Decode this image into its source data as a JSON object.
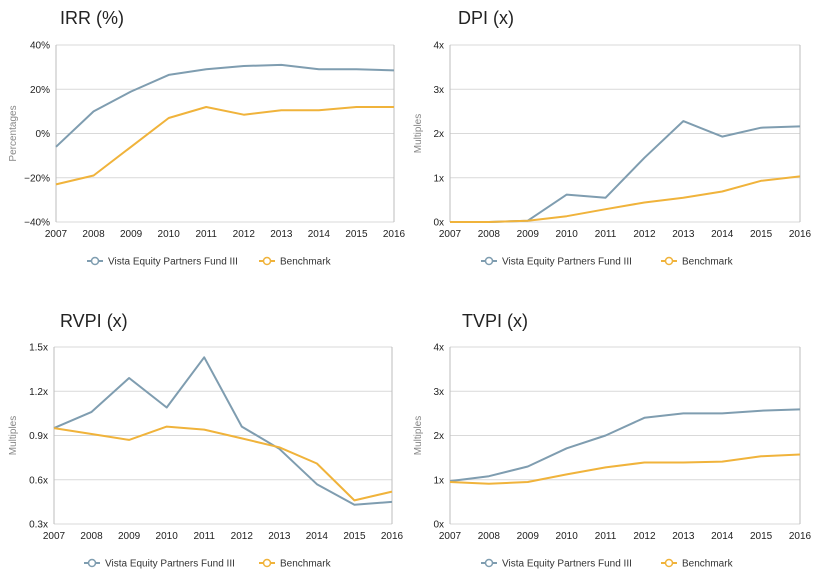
{
  "colors": {
    "fund": "#7f9db0",
    "benchmark": "#f0b33b"
  },
  "legend": {
    "fund": "Vista Equity Partners Fund III",
    "benchmark": "Benchmark"
  },
  "chart_data": [
    {
      "type": "line",
      "title": "IRR (%)",
      "ylabel": "Percentages",
      "x": [
        "2007",
        "2008",
        "2009",
        "2010",
        "2011",
        "2012",
        "2013",
        "2014",
        "2015",
        "2016"
      ],
      "yticks": [
        -40,
        -20,
        0,
        20,
        40
      ],
      "ytick_labels": [
        "−40%",
        "−20%",
        "0%",
        "20%",
        "40%"
      ],
      "ylim": [
        -40,
        40
      ],
      "legend": "bottom",
      "grid": true,
      "series": [
        {
          "name": "Vista Equity Partners Fund III",
          "values": [
            -6,
            10,
            19,
            26.5,
            29,
            30.5,
            31,
            29,
            29,
            28.5
          ]
        },
        {
          "name": "Benchmark",
          "values": [
            -23,
            -19,
            -6,
            7,
            12,
            8.5,
            10.5,
            10.5,
            12,
            12
          ]
        }
      ]
    },
    {
      "type": "line",
      "title": "DPI (x)",
      "ylabel": "Multiples",
      "x": [
        "2007",
        "2008",
        "2009",
        "2010",
        "2011",
        "2012",
        "2013",
        "2014",
        "2015",
        "2016"
      ],
      "yticks": [
        0,
        1,
        2,
        3,
        4
      ],
      "ytick_labels": [
        "0x",
        "1x",
        "2x",
        "3x",
        "4x"
      ],
      "ylim": [
        0,
        4
      ],
      "legend": "bottom",
      "grid": true,
      "series": [
        {
          "name": "Vista Equity Partners Fund III",
          "values": [
            0,
            0,
            0.03,
            0.62,
            0.55,
            1.45,
            2.28,
            1.93,
            2.13,
            2.16
          ]
        },
        {
          "name": "Benchmark",
          "values": [
            0,
            0,
            0.03,
            0.13,
            0.29,
            0.44,
            0.55,
            0.69,
            0.93,
            1.03
          ]
        }
      ]
    },
    {
      "type": "line",
      "title": "RVPI (x)",
      "ylabel": "Multiples",
      "x": [
        "2007",
        "2008",
        "2009",
        "2010",
        "2011",
        "2012",
        "2013",
        "2014",
        "2015",
        "2016"
      ],
      "yticks": [
        0.3,
        0.6,
        0.9,
        1.2,
        1.5
      ],
      "ytick_labels": [
        "0.3x",
        "0.6x",
        "0.9x",
        "1.2x",
        "1.5x"
      ],
      "ylim": [
        0.3,
        1.5
      ],
      "legend": "bottom",
      "grid": true,
      "series": [
        {
          "name": "Vista Equity Partners Fund III",
          "values": [
            0.95,
            1.06,
            1.29,
            1.09,
            1.43,
            0.96,
            0.81,
            0.57,
            0.43,
            0.45
          ]
        },
        {
          "name": "Benchmark",
          "values": [
            0.95,
            0.91,
            0.87,
            0.96,
            0.94,
            0.88,
            0.82,
            0.71,
            0.46,
            0.52
          ]
        }
      ]
    },
    {
      "type": "line",
      "title": "TVPI (x)",
      "ylabel": "Multiples",
      "x": [
        "2007",
        "2008",
        "2009",
        "2010",
        "2011",
        "2012",
        "2013",
        "2014",
        "2015",
        "2016"
      ],
      "yticks": [
        0,
        1,
        2,
        3,
        4
      ],
      "ytick_labels": [
        "0x",
        "1x",
        "2x",
        "3x",
        "4x"
      ],
      "ylim": [
        0,
        4
      ],
      "legend": "bottom",
      "grid": true,
      "series": [
        {
          "name": "Vista Equity Partners Fund III",
          "values": [
            0.97,
            1.08,
            1.3,
            1.71,
            2.0,
            2.4,
            2.5,
            2.5,
            2.56,
            2.59
          ]
        },
        {
          "name": "Benchmark",
          "values": [
            0.95,
            0.91,
            0.95,
            1.12,
            1.28,
            1.39,
            1.39,
            1.41,
            1.53,
            1.57
          ]
        }
      ]
    }
  ]
}
